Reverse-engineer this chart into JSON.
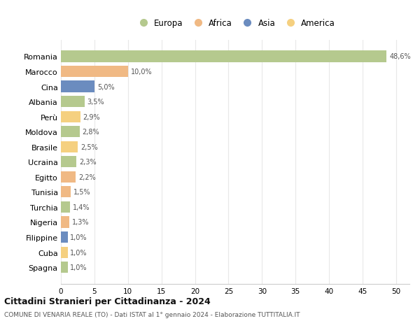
{
  "countries": [
    "Romania",
    "Marocco",
    "Cina",
    "Albania",
    "Perù",
    "Moldova",
    "Brasile",
    "Ucraina",
    "Egitto",
    "Tunisia",
    "Turchia",
    "Nigeria",
    "Filippine",
    "Cuba",
    "Spagna"
  ],
  "values": [
    48.6,
    10.0,
    5.0,
    3.5,
    2.9,
    2.8,
    2.5,
    2.3,
    2.2,
    1.5,
    1.4,
    1.3,
    1.0,
    1.0,
    1.0
  ],
  "labels": [
    "48,6%",
    "10,0%",
    "5,0%",
    "3,5%",
    "2,9%",
    "2,8%",
    "2,5%",
    "2,3%",
    "2,2%",
    "1,5%",
    "1,4%",
    "1,3%",
    "1,0%",
    "1,0%",
    "1,0%"
  ],
  "colors": [
    "#b5c98e",
    "#f0b984",
    "#6b8cbf",
    "#b5c98e",
    "#f5d080",
    "#b5c98e",
    "#f5d080",
    "#b5c98e",
    "#f0b984",
    "#f0b984",
    "#b5c98e",
    "#f0b984",
    "#6b8cbf",
    "#f5d080",
    "#b5c98e"
  ],
  "legend_labels": [
    "Europa",
    "Africa",
    "Asia",
    "America"
  ],
  "legend_colors": [
    "#b5c98e",
    "#f0b984",
    "#6b8cbf",
    "#f5d080"
  ],
  "title": "Cittadini Stranieri per Cittadinanza - 2024",
  "subtitle": "COMUNE DI VENARIA REALE (TO) - Dati ISTAT al 1° gennaio 2024 - Elaborazione TUTTITALIA.IT",
  "xlim": [
    0,
    52
  ],
  "xticks": [
    0,
    5,
    10,
    15,
    20,
    25,
    30,
    35,
    40,
    45,
    50
  ],
  "background_color": "#ffffff",
  "grid_color": "#e8e8e8"
}
